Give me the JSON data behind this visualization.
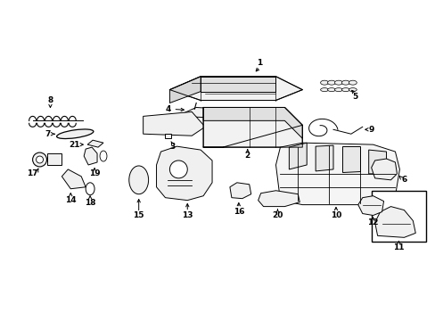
{
  "bg_color": "#ffffff",
  "fg_color": "#000000",
  "fig_width": 4.89,
  "fig_height": 3.6,
  "dpi": 100
}
